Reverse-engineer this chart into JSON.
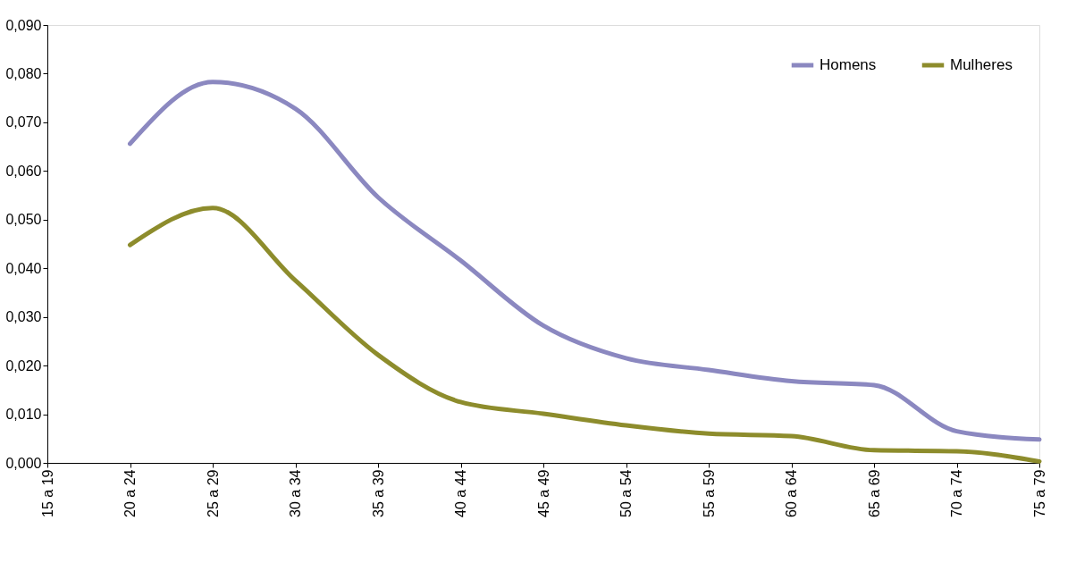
{
  "chart_data": {
    "type": "line",
    "categories": [
      "15 a 19",
      "20 a 24",
      "25 a 29",
      "30 a 34",
      "35 a 39",
      "40 a 44",
      "45 a 49",
      "50 a 54",
      "55 a 59",
      "60 a 64",
      "65 a 69",
      "70 a 74",
      "75 a 79"
    ],
    "series": [
      {
        "name": "Homens",
        "color": "#8b88c0",
        "values": [
          null,
          0.0656,
          0.0783,
          0.0728,
          0.0546,
          0.0416,
          0.0282,
          0.0215,
          0.0191,
          0.0168,
          0.016,
          0.0065,
          0.0048
        ]
      },
      {
        "name": "Mulheres",
        "color": "#8d8c2c",
        "values": [
          null,
          0.0448,
          0.0524,
          0.0375,
          0.0222,
          0.0125,
          0.0101,
          0.0077,
          0.006,
          0.0055,
          0.0026,
          0.0024,
          0.0003
        ]
      }
    ],
    "ylim": [
      0,
      0.09
    ],
    "yticks": [
      {
        "value": 0,
        "label": "0,000"
      },
      {
        "value": 0.01,
        "label": "0,010"
      },
      {
        "value": 0.02,
        "label": "0,020"
      },
      {
        "value": 0.03,
        "label": "0,030"
      },
      {
        "value": 0.04,
        "label": "0,040"
      },
      {
        "value": 0.05,
        "label": "0,050"
      },
      {
        "value": 0.06,
        "label": "0,060"
      },
      {
        "value": 0.07,
        "label": "0,070"
      },
      {
        "value": 0.08,
        "label": "0,080"
      },
      {
        "value": 0.09,
        "label": "0,090"
      }
    ],
    "grid": false,
    "legend": "top right",
    "line_style": "solid"
  }
}
